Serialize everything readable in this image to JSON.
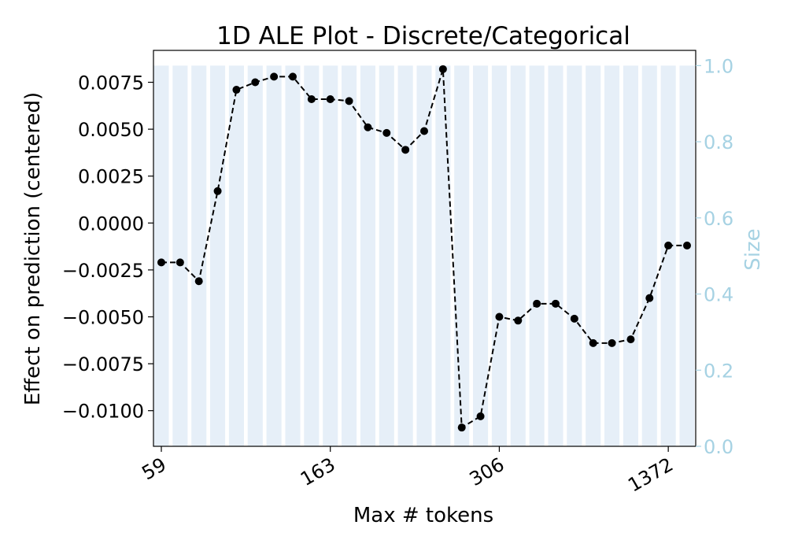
{
  "chart_data": {
    "type": "line",
    "title": "1D ALE Plot - Discrete/Categorical",
    "xlabel": "Max # tokens",
    "ylabel": "Effect on prediction (centered)",
    "y2label": "Size",
    "x_tick_labels": [
      "59",
      "163",
      "306",
      "1372"
    ],
    "x_tick_index": [
      0,
      9,
      18,
      27
    ],
    "y_ticks": [
      "0.0075",
      "0.0050",
      "0.0025",
      "0.0000",
      "−0.0025",
      "−0.0050",
      "−0.0075",
      "−0.0100"
    ],
    "y_tick_values": [
      0.0075,
      0.005,
      0.0025,
      0.0,
      -0.0025,
      -0.005,
      -0.0075,
      -0.01
    ],
    "y2_ticks": [
      "0.0",
      "0.2",
      "0.4",
      "0.6",
      "0.8",
      "1.0"
    ],
    "y2_tick_values": [
      0.0,
      0.2,
      0.4,
      0.6,
      0.8,
      1.0
    ],
    "ylim": [
      -0.0119,
      0.0092
    ],
    "y2lim": [
      0.0,
      1.04
    ],
    "series": [
      {
        "values": [
          -0.0021,
          -0.0021,
          -0.0031,
          0.0017,
          0.0071,
          0.0075,
          0.0078,
          0.0078,
          0.0066,
          0.0066,
          0.0065,
          0.0051,
          0.0048,
          0.0039,
          0.0049,
          0.0082,
          -0.0109,
          -0.0103,
          -0.005,
          -0.0052,
          -0.0043,
          -0.0043,
          -0.0051,
          -0.0064,
          -0.0064,
          -0.0062,
          -0.004,
          -0.0012,
          -0.0012
        ]
      }
    ],
    "size_bars": [
      1,
      1,
      1,
      1,
      1,
      1,
      1,
      1,
      1,
      1,
      1,
      1,
      1,
      1,
      1,
      1,
      1,
      1,
      1,
      1,
      1,
      1,
      1,
      1,
      1,
      1,
      1,
      1,
      1
    ],
    "colors": {
      "line": "#000000",
      "bars": "#e6eff8",
      "secondary_axis": "#a6d2e3"
    },
    "grid": false
  }
}
